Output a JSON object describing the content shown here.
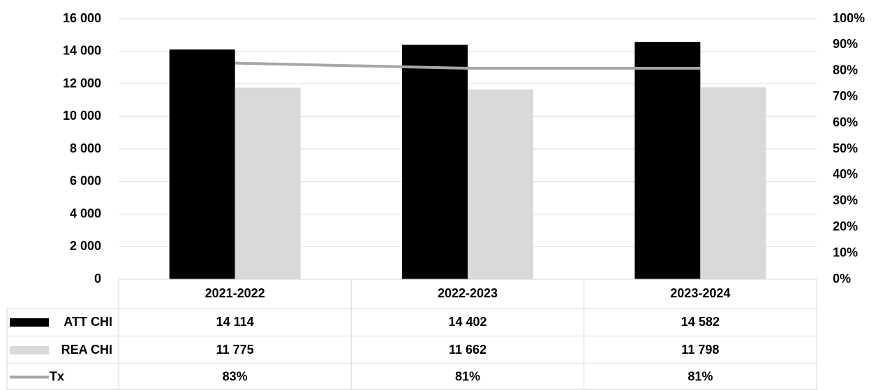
{
  "chart_data": {
    "type": "bar",
    "categories": [
      "2021-2022",
      "2022-2023",
      "2023-2024"
    ],
    "series": [
      {
        "name": "ATT CHI",
        "color": "#000000",
        "values": [
          14114,
          14402,
          14582
        ],
        "value_labels": [
          "14 114",
          "14 402",
          "14 582"
        ]
      },
      {
        "name": "REA CHI",
        "color": "#d9d9d9",
        "values": [
          11775,
          11662,
          11798
        ],
        "value_labels": [
          "11 775",
          "11 662",
          "11 798"
        ]
      },
      {
        "name": "Tx",
        "type": "line",
        "axis": "y2",
        "color": "#a6a6a6",
        "values": [
          83,
          81,
          81
        ],
        "value_labels": [
          "83%",
          "81%",
          "81%"
        ]
      }
    ],
    "ylim": [
      0,
      16000
    ],
    "yticks": [
      0,
      {
        "value": 2000,
        "label": "2 000"
      },
      {
        "value": 4000,
        "label": "4 000"
      },
      {
        "value": 6000,
        "label": "6 000"
      },
      {
        "value": 8000,
        "label": "8 000"
      },
      {
        "value": 10000,
        "label": "10 000"
      },
      {
        "value": 12000,
        "label": "12 000"
      },
      {
        "value": 14000,
        "label": "14 000"
      },
      {
        "value": 16000,
        "label": "16 000"
      }
    ],
    "y2lim": [
      0,
      100
    ],
    "y2ticks": [
      {
        "value": 0,
        "label": "0%"
      },
      {
        "value": 10,
        "label": "10%"
      },
      {
        "value": 20,
        "label": "20%"
      },
      {
        "value": 30,
        "label": "30%"
      },
      {
        "value": 40,
        "label": "40%"
      },
      {
        "value": 50,
        "label": "50%"
      },
      {
        "value": 60,
        "label": "60%"
      },
      {
        "value": 70,
        "label": "70%"
      },
      {
        "value": 80,
        "label": "80%"
      },
      {
        "value": 90,
        "label": "90%"
      },
      {
        "value": 100,
        "label": "100%"
      }
    ],
    "grid": true,
    "data_table": true
  }
}
